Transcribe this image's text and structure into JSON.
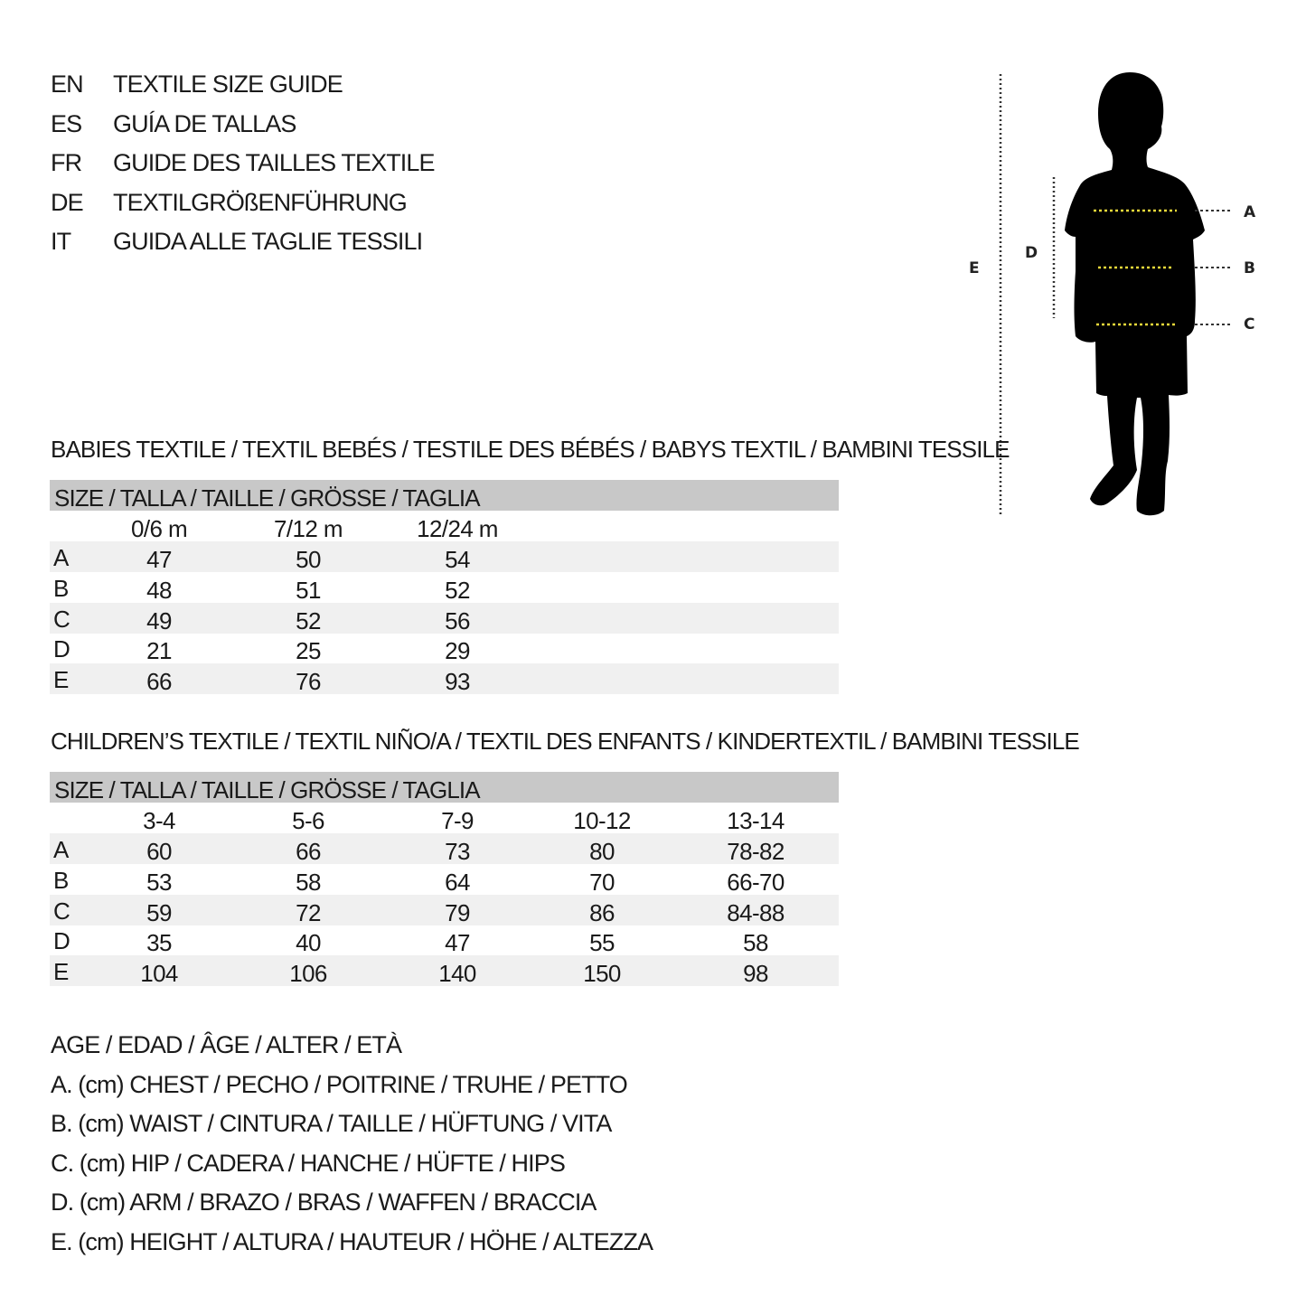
{
  "titles": [
    {
      "code": "EN",
      "text": "TEXTILE SIZE GUIDE"
    },
    {
      "code": "ES",
      "text": "GUÍA DE TALLAS"
    },
    {
      "code": "FR",
      "text": "GUIDE DES TAILLES TEXTILE"
    },
    {
      "code": "DE",
      "text": "TEXTILGRÖßENFÜHRUNG"
    },
    {
      "code": "IT",
      "text": "GUIDA ALLE TAGLIE TESSILI"
    }
  ],
  "figure": {
    "labels": {
      "A": "A",
      "B": "B",
      "C": "C",
      "D": "D",
      "E": "E"
    },
    "colors": {
      "silhouette": "#000000",
      "measure_line": "#e8d83a",
      "guide_line": "#333333"
    }
  },
  "babies": {
    "title": "BABIES TEXTILE / TEXTIL BEBÉS / TESTILE DES BÉBÉS / BABYS TEXTIL / BAMBINI TESSILE",
    "header": "SIZE / TALLA / TAILLE / GRÖSSE / TAGLIA",
    "columns": [
      "0/6 m",
      "7/12 m",
      "12/24 m"
    ],
    "rows": [
      {
        "label": "A",
        "values": [
          "47",
          "50",
          "54"
        ]
      },
      {
        "label": "B",
        "values": [
          "48",
          "51",
          "52"
        ]
      },
      {
        "label": "C",
        "values": [
          "49",
          "52",
          "56"
        ]
      },
      {
        "label": "D",
        "values": [
          "21",
          "25",
          "29"
        ]
      },
      {
        "label": "E",
        "values": [
          "66",
          "76",
          "93"
        ]
      }
    ]
  },
  "children": {
    "title": "CHILDREN’S TEXTILE / TEXTIL NIÑO/A / TEXTIL DES ENFANTS / KINDERTEXTIL / BAMBINI TESSILE",
    "header": "SIZE / TALLA / TAILLE / GRÖSSE / TAGLIA",
    "columns": [
      "3-4",
      "5-6",
      "7-9",
      "10-12",
      "13-14"
    ],
    "rows": [
      {
        "label": "A",
        "values": [
          "60",
          "66",
          "73",
          "80",
          "78-82"
        ]
      },
      {
        "label": "B",
        "values": [
          "53",
          "58",
          "64",
          "70",
          "66-70"
        ]
      },
      {
        "label": "C",
        "values": [
          "59",
          "72",
          "79",
          "86",
          "84-88"
        ]
      },
      {
        "label": "D",
        "values": [
          "35",
          "40",
          "47",
          "55",
          "58"
        ]
      },
      {
        "label": "E",
        "values": [
          "104",
          "106",
          "140",
          "150",
          "98"
        ]
      }
    ]
  },
  "legend": [
    "AGE / EDAD / ÂGE / ALTER / ETÀ",
    "A. (cm) CHEST / PECHO / POITRINE / TRUHE / PETTO",
    "B. (cm) WAIST / CINTURA / TAILLE / HÜFTUNG / VITA",
    "C. (cm) HIP / CADERA / HANCHE / HÜFTE / HIPS",
    "D. (cm) ARM / BRAZO / BRAS / WAFFEN / BRACCIA",
    "E. (cm) HEIGHT / ALTURA / HAUTEUR / HÖHE / ALTEZZA"
  ]
}
